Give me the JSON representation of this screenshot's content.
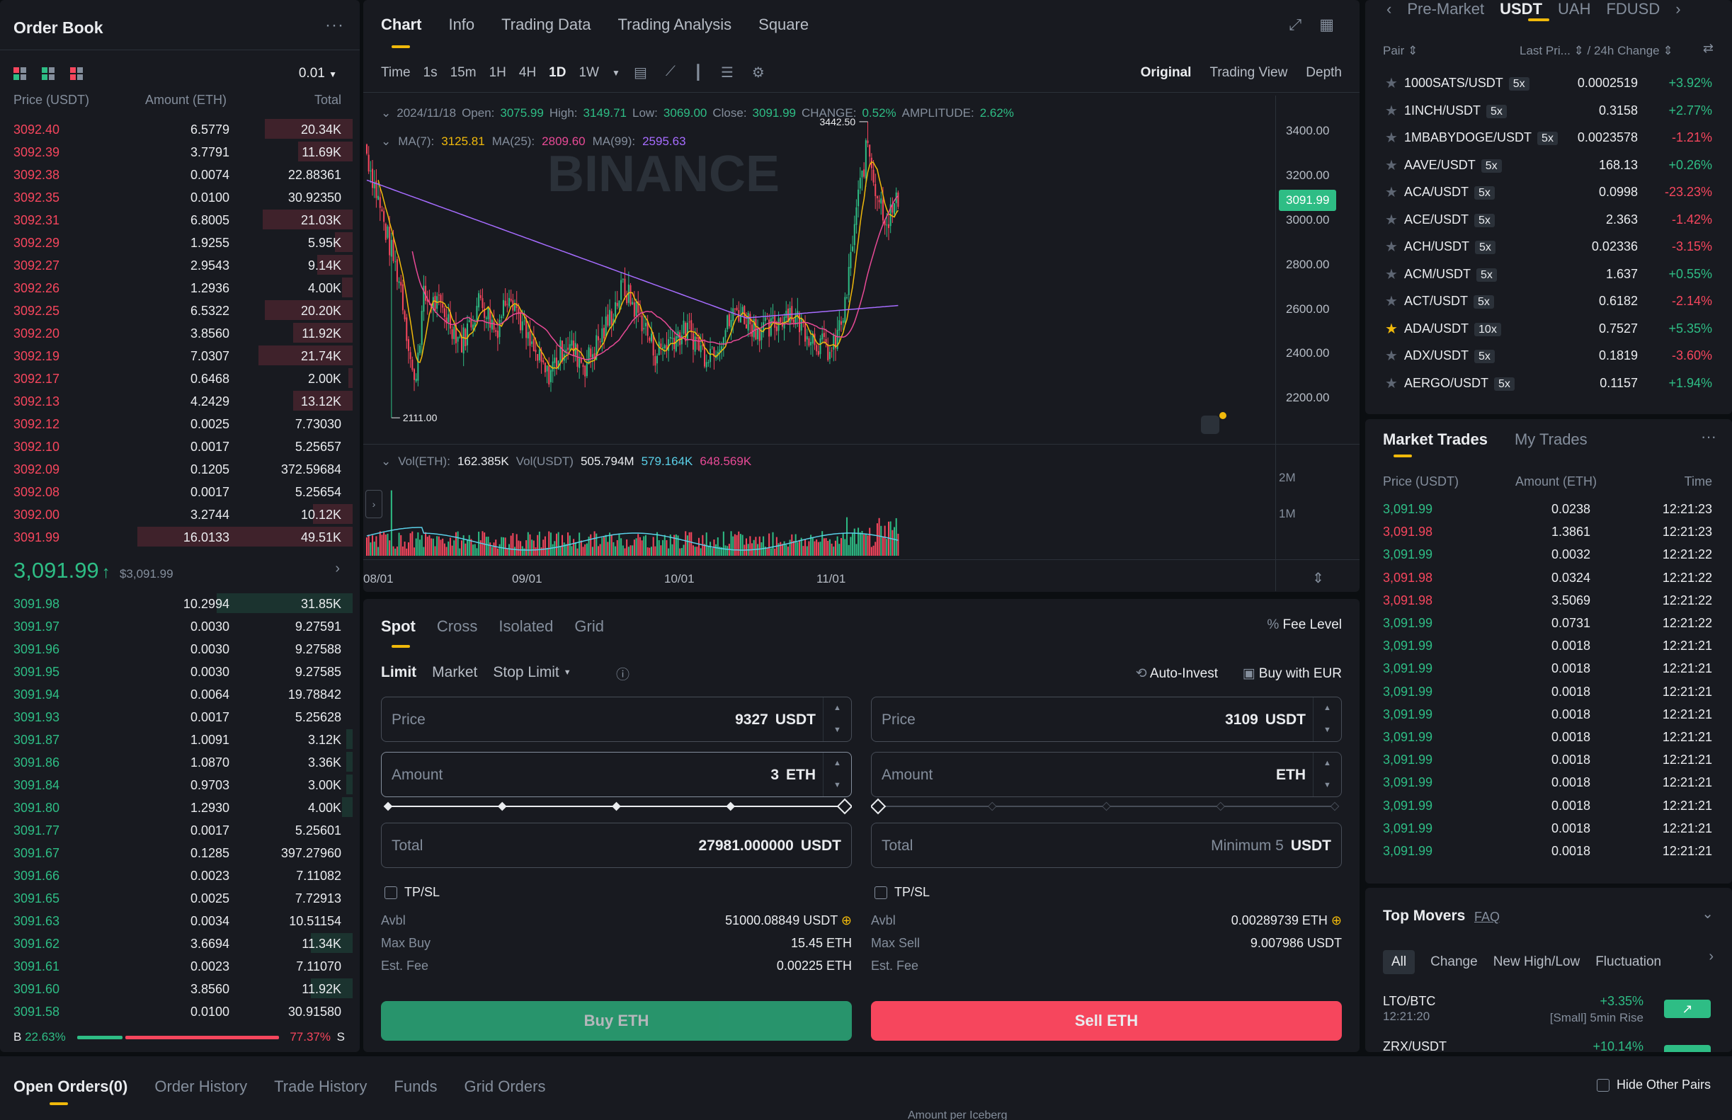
{
  "order_book": {
    "title": "Order Book",
    "precision": "0.01",
    "headers": {
      "price": "Price (USDT)",
      "amount": "Amount (ETH)",
      "total": "Total"
    },
    "asks": [
      {
        "price": "3092.40",
        "amount": "6.5779",
        "total": "20.34K",
        "depth": 0.4
      },
      {
        "price": "3092.39",
        "amount": "3.7791",
        "total": "11.69K",
        "depth": 0.25
      },
      {
        "price": "3092.38",
        "amount": "0.0074",
        "total": "22.88361",
        "depth": 0.0
      },
      {
        "price": "3092.35",
        "amount": "0.0100",
        "total": "30.92350",
        "depth": 0.0
      },
      {
        "price": "3092.31",
        "amount": "6.8005",
        "total": "21.03K",
        "depth": 0.41
      },
      {
        "price": "3092.29",
        "amount": "1.9255",
        "total": "5.95K",
        "depth": 0.08
      },
      {
        "price": "3092.27",
        "amount": "2.9543",
        "total": "9.14K",
        "depth": 0.16
      },
      {
        "price": "3092.26",
        "amount": "1.2936",
        "total": "4.00K",
        "depth": 0.05
      },
      {
        "price": "3092.25",
        "amount": "6.5322",
        "total": "20.20K",
        "depth": 0.4
      },
      {
        "price": "3092.20",
        "amount": "3.8560",
        "total": "11.92K",
        "depth": 0.27
      },
      {
        "price": "3092.19",
        "amount": "7.0307",
        "total": "21.74K",
        "depth": 0.43
      },
      {
        "price": "3092.17",
        "amount": "0.6468",
        "total": "2.00K",
        "depth": 0.02
      },
      {
        "price": "3092.13",
        "amount": "4.2429",
        "total": "13.12K",
        "depth": 0.27
      },
      {
        "price": "3092.12",
        "amount": "0.0025",
        "total": "7.73030",
        "depth": 0.0
      },
      {
        "price": "3092.10",
        "amount": "0.0017",
        "total": "5.25657",
        "depth": 0.0
      },
      {
        "price": "3092.09",
        "amount": "0.1205",
        "total": "372.59684",
        "depth": 0.0
      },
      {
        "price": "3092.08",
        "amount": "0.0017",
        "total": "5.25654",
        "depth": 0.0
      },
      {
        "price": "3092.00",
        "amount": "3.2744",
        "total": "10.12K",
        "depth": 0.18
      },
      {
        "price": "3091.99",
        "amount": "16.0133",
        "total": "49.51K",
        "depth": 0.98
      }
    ],
    "mid_price": "3,091.99",
    "mid_fiat": "$3,091.99",
    "bids": [
      {
        "price": "3091.98",
        "amount": "10.2994",
        "total": "31.85K",
        "depth": 0.62
      },
      {
        "price": "3091.97",
        "amount": "0.0030",
        "total": "9.27591",
        "depth": 0.0
      },
      {
        "price": "3091.96",
        "amount": "0.0030",
        "total": "9.27588",
        "depth": 0.0
      },
      {
        "price": "3091.95",
        "amount": "0.0030",
        "total": "9.27585",
        "depth": 0.0
      },
      {
        "price": "3091.94",
        "amount": "0.0064",
        "total": "19.78842",
        "depth": 0.0
      },
      {
        "price": "3091.93",
        "amount": "0.0017",
        "total": "5.25628",
        "depth": 0.0
      },
      {
        "price": "3091.87",
        "amount": "1.0091",
        "total": "3.12K",
        "depth": 0.03
      },
      {
        "price": "3091.86",
        "amount": "1.0870",
        "total": "3.36K",
        "depth": 0.03
      },
      {
        "price": "3091.84",
        "amount": "0.9703",
        "total": "3.00K",
        "depth": 0.03
      },
      {
        "price": "3091.80",
        "amount": "1.2930",
        "total": "4.00K",
        "depth": 0.05
      },
      {
        "price": "3091.77",
        "amount": "0.0017",
        "total": "5.25601",
        "depth": 0.0
      },
      {
        "price": "3091.67",
        "amount": "0.1285",
        "total": "397.27960",
        "depth": 0.0
      },
      {
        "price": "3091.66",
        "amount": "0.0023",
        "total": "7.11082",
        "depth": 0.0
      },
      {
        "price": "3091.65",
        "amount": "0.0025",
        "total": "7.72913",
        "depth": 0.0
      },
      {
        "price": "3091.63",
        "amount": "0.0034",
        "total": "10.51154",
        "depth": 0.0
      },
      {
        "price": "3091.62",
        "amount": "3.6694",
        "total": "11.34K",
        "depth": 0.19
      },
      {
        "price": "3091.61",
        "amount": "0.0023",
        "total": "7.11070",
        "depth": 0.0
      },
      {
        "price": "3091.60",
        "amount": "3.8560",
        "total": "11.92K",
        "depth": 0.19
      },
      {
        "price": "3091.58",
        "amount": "0.0100",
        "total": "30.91580",
        "depth": 0.0
      }
    ],
    "buy_ratio": "22.63%",
    "sell_ratio": "77.37%",
    "buy_fraction": 0.2263,
    "b_label": "B",
    "s_label": "S"
  },
  "chart": {
    "tabs": [
      "Chart",
      "Info",
      "Trading Data",
      "Trading Analysis",
      "Square"
    ],
    "timeframes": [
      "Time",
      "1s",
      "15m",
      "1H",
      "4H",
      "1D",
      "1W"
    ],
    "active_tf": "1D",
    "views": [
      "Original",
      "Trading View",
      "Depth"
    ],
    "info": {
      "date": "2024/11/18",
      "open_label": "Open:",
      "open": "3075.99",
      "high_label": "High:",
      "high": "3149.71",
      "low_label": "Low:",
      "low": "3069.00",
      "close_label": "Close:",
      "close": "3091.99",
      "change_label": "CHANGE:",
      "change": "0.52%",
      "amp_label": "AMPLITUDE:",
      "amp": "2.62%"
    },
    "ma": {
      "ma7_label": "MA(7):",
      "ma7": "3125.81",
      "ma25_label": "MA(25):",
      "ma25": "2809.60",
      "ma99_label": "MA(99):",
      "ma99": "2595.63"
    },
    "y_ticks": [
      "3400.00",
      "3200.00",
      "3000.00",
      "2800.00",
      "2600.00",
      "2400.00",
      "2200.00"
    ],
    "last_price": "3091.99",
    "high_marker": "3442.50",
    "low_marker": "2111.00",
    "vol": {
      "label": "Vol(ETH):",
      "eth": "162.385K",
      "usdt_label": "Vol(USDT)",
      "usdt": "505.794M",
      "v1": "579.164K",
      "v2": "648.569K"
    },
    "vol_ticks": [
      "2M",
      "1M"
    ],
    "x_ticks": [
      "08/01",
      "09/01",
      "10/01",
      "11/01"
    ],
    "watermark": "BINANCE",
    "colors": {
      "up": "#2ebd85",
      "down": "#f6465d",
      "ma7": "#f0b90b",
      "ma25": "#e84a96",
      "ma99": "#a66cff"
    }
  },
  "form": {
    "tabs": [
      "Spot",
      "Cross",
      "Isolated",
      "Grid"
    ],
    "fee_level": "Fee Level",
    "order_types": [
      "Limit",
      "Market",
      "Stop Limit"
    ],
    "auto_invest": "Auto-Invest",
    "buy_with": "Buy with EUR",
    "buy": {
      "price_label": "Price",
      "price": "9327",
      "price_unit": "USDT",
      "amount_label": "Amount",
      "amount": "3",
      "amount_unit": "ETH",
      "total_label": "Total",
      "total": "27981.000000",
      "total_unit": "USDT",
      "slider_fraction": 1.0,
      "tpsl": "TP/SL",
      "avbl_label": "Avbl",
      "avbl": "51000.08849 USDT",
      "max_label": "Max Buy",
      "max": "15.45 ETH",
      "fee_label": "Est. Fee",
      "fee": "0.00225 ETH",
      "button": "Buy ETH"
    },
    "sell": {
      "price_label": "Price",
      "price": "3109",
      "price_unit": "USDT",
      "amount_label": "Amount",
      "amount": "",
      "amount_unit": "ETH",
      "total_label": "Total",
      "total_placeholder": "Minimum 5",
      "total_unit": "USDT",
      "slider_fraction": 0.0,
      "tpsl": "TP/SL",
      "avbl_label": "Avbl",
      "avbl": "0.00289739 ETH",
      "max_label": "Max Sell",
      "max": "9.007986 USDT",
      "fee_label": "Est. Fee",
      "fee": "",
      "button": "Sell ETH"
    }
  },
  "pairs": {
    "quote_tabs": [
      "Pre-Market",
      "USDT",
      "UAH",
      "FDUSD"
    ],
    "active_quote": "USDT",
    "headers": {
      "pair": "Pair",
      "last": "Last Pri...",
      "change": "/ 24h Change"
    },
    "rows": [
      {
        "pair": "1000SATS/USDT",
        "lev": "5x",
        "price": "0.0002519",
        "change": "+3.92%",
        "up": true,
        "fav": false
      },
      {
        "pair": "1INCH/USDT",
        "lev": "5x",
        "price": "0.3158",
        "change": "+2.77%",
        "up": true,
        "fav": false
      },
      {
        "pair": "1MBABYDOGE/USDT",
        "lev": "5x",
        "price": "0.0023578",
        "change": "-1.21%",
        "up": false,
        "fav": false
      },
      {
        "pair": "AAVE/USDT",
        "lev": "5x",
        "price": "168.13",
        "change": "+0.26%",
        "up": true,
        "fav": false
      },
      {
        "pair": "ACA/USDT",
        "lev": "5x",
        "price": "0.0998",
        "change": "-23.23%",
        "up": false,
        "fav": false
      },
      {
        "pair": "ACE/USDT",
        "lev": "5x",
        "price": "2.363",
        "change": "-1.42%",
        "up": false,
        "fav": false
      },
      {
        "pair": "ACH/USDT",
        "lev": "5x",
        "price": "0.02336",
        "change": "-3.15%",
        "up": false,
        "fav": false
      },
      {
        "pair": "ACM/USDT",
        "lev": "5x",
        "price": "1.637",
        "change": "+0.55%",
        "up": true,
        "fav": false
      },
      {
        "pair": "ACT/USDT",
        "lev": "5x",
        "price": "0.6182",
        "change": "-2.14%",
        "up": false,
        "fav": false
      },
      {
        "pair": "ADA/USDT",
        "lev": "10x",
        "price": "0.7527",
        "change": "+5.35%",
        "up": true,
        "fav": true
      },
      {
        "pair": "ADX/USDT",
        "lev": "5x",
        "price": "0.1819",
        "change": "-3.60%",
        "up": false,
        "fav": false
      },
      {
        "pair": "AERGO/USDT",
        "lev": "5x",
        "price": "0.1157",
        "change": "+1.94%",
        "up": true,
        "fav": false
      }
    ]
  },
  "trades": {
    "tabs": [
      "Market Trades",
      "My Trades"
    ],
    "headers": {
      "price": "Price (USDT)",
      "amount": "Amount (ETH)",
      "time": "Time"
    },
    "rows": [
      {
        "price": "3,091.99",
        "amount": "0.0238",
        "time": "12:21:23",
        "up": true
      },
      {
        "price": "3,091.98",
        "amount": "1.3861",
        "time": "12:21:23",
        "up": false
      },
      {
        "price": "3,091.99",
        "amount": "0.0032",
        "time": "12:21:22",
        "up": true
      },
      {
        "price": "3,091.98",
        "amount": "0.0324",
        "time": "12:21:22",
        "up": false
      },
      {
        "price": "3,091.98",
        "amount": "3.5069",
        "time": "12:21:22",
        "up": false
      },
      {
        "price": "3,091.99",
        "amount": "0.0731",
        "time": "12:21:22",
        "up": true
      },
      {
        "price": "3,091.99",
        "amount": "0.0018",
        "time": "12:21:21",
        "up": true
      },
      {
        "price": "3,091.99",
        "amount": "0.0018",
        "time": "12:21:21",
        "up": true
      },
      {
        "price": "3,091.99",
        "amount": "0.0018",
        "time": "12:21:21",
        "up": true
      },
      {
        "price": "3,091.99",
        "amount": "0.0018",
        "time": "12:21:21",
        "up": true
      },
      {
        "price": "3,091.99",
        "amount": "0.0018",
        "time": "12:21:21",
        "up": true
      },
      {
        "price": "3,091.99",
        "amount": "0.0018",
        "time": "12:21:21",
        "up": true
      },
      {
        "price": "3,091.99",
        "amount": "0.0018",
        "time": "12:21:21",
        "up": true
      },
      {
        "price": "3,091.99",
        "amount": "0.0018",
        "time": "12:21:21",
        "up": true
      },
      {
        "price": "3,091.99",
        "amount": "0.0018",
        "time": "12:21:21",
        "up": true
      },
      {
        "price": "3,091.99",
        "amount": "0.0018",
        "time": "12:21:21",
        "up": true
      }
    ]
  },
  "movers": {
    "title": "Top Movers",
    "faq": "FAQ",
    "tabs": [
      "All",
      "Change",
      "New High/Low",
      "Fluctuation"
    ],
    "rows": [
      {
        "pair": "LTO/BTC",
        "time": "12:21:20",
        "change": "+3.35%",
        "desc": "[Small] 5min Rise"
      },
      {
        "pair": "ZRX/USDT",
        "time": "",
        "change": "+10.14%",
        "desc": ""
      }
    ]
  },
  "bottom": {
    "tabs": [
      "Open Orders(0)",
      "Order History",
      "Trade History",
      "Funds",
      "Grid Orders"
    ],
    "hide_other": "Hide Other Pairs",
    "footer": "Amount per Iceberg"
  }
}
